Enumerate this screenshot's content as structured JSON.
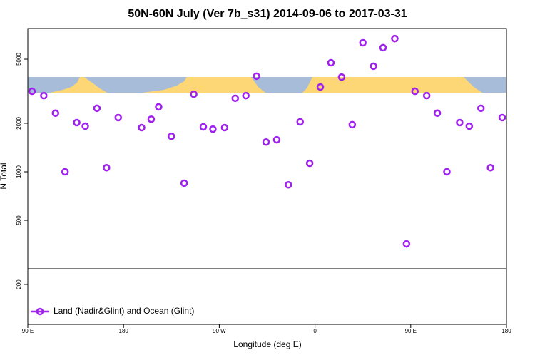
{
  "chart_data": {
    "type": "scatter",
    "title": "50N-60N July (Ver 7b_s31)   2014-09-06 to 2017-03-31",
    "x_label": "Longitude (deg E)",
    "y_label": "N Total",
    "log_y": true,
    "legend": "bottomleft",
    "xlim": [
      90,
      540
    ],
    "xticks": [
      {
        "value": 90,
        "label": "90 E"
      },
      180,
      {
        "value": 270,
        "label": "90 W"
      },
      {
        "value": 360,
        "label": "0"
      },
      {
        "value": 450,
        "label": "90 E"
      },
      {
        "value": 540,
        "label": "180"
      }
    ],
    "ylim": [
      113,
      7750
    ],
    "yticks": [
      200,
      500,
      1000,
      2000,
      5000
    ],
    "series": [
      {
        "name": "Land (Nadir&Glint) and Ocean (Glint)",
        "color": "#a020f0",
        "x": [
          94,
          105,
          116,
          125,
          136,
          144,
          155,
          164,
          175,
          197,
          206,
          213,
          225,
          237,
          246,
          255,
          264,
          275,
          285,
          295,
          305,
          314,
          324,
          335,
          346,
          355,
          365,
          375,
          385,
          395,
          405,
          415,
          424,
          435,
          446,
          454,
          465,
          475,
          484,
          496,
          505,
          516,
          525,
          536
        ],
        "values": [
          3160,
          2970,
          2310,
          1000,
          2020,
          1920,
          2480,
          1060,
          2170,
          1880,
          2120,
          2530,
          1660,
          850,
          3030,
          1900,
          1840,
          1880,
          2860,
          2970,
          3920,
          1530,
          1580,
          830,
          2040,
          1130,
          3360,
          4750,
          3870,
          1960,
          6320,
          4520,
          5890,
          6710,
          357,
          3160,
          2970,
          2310,
          1000,
          2020,
          1920,
          2480,
          1060,
          2170
        ]
      }
    ]
  }
}
